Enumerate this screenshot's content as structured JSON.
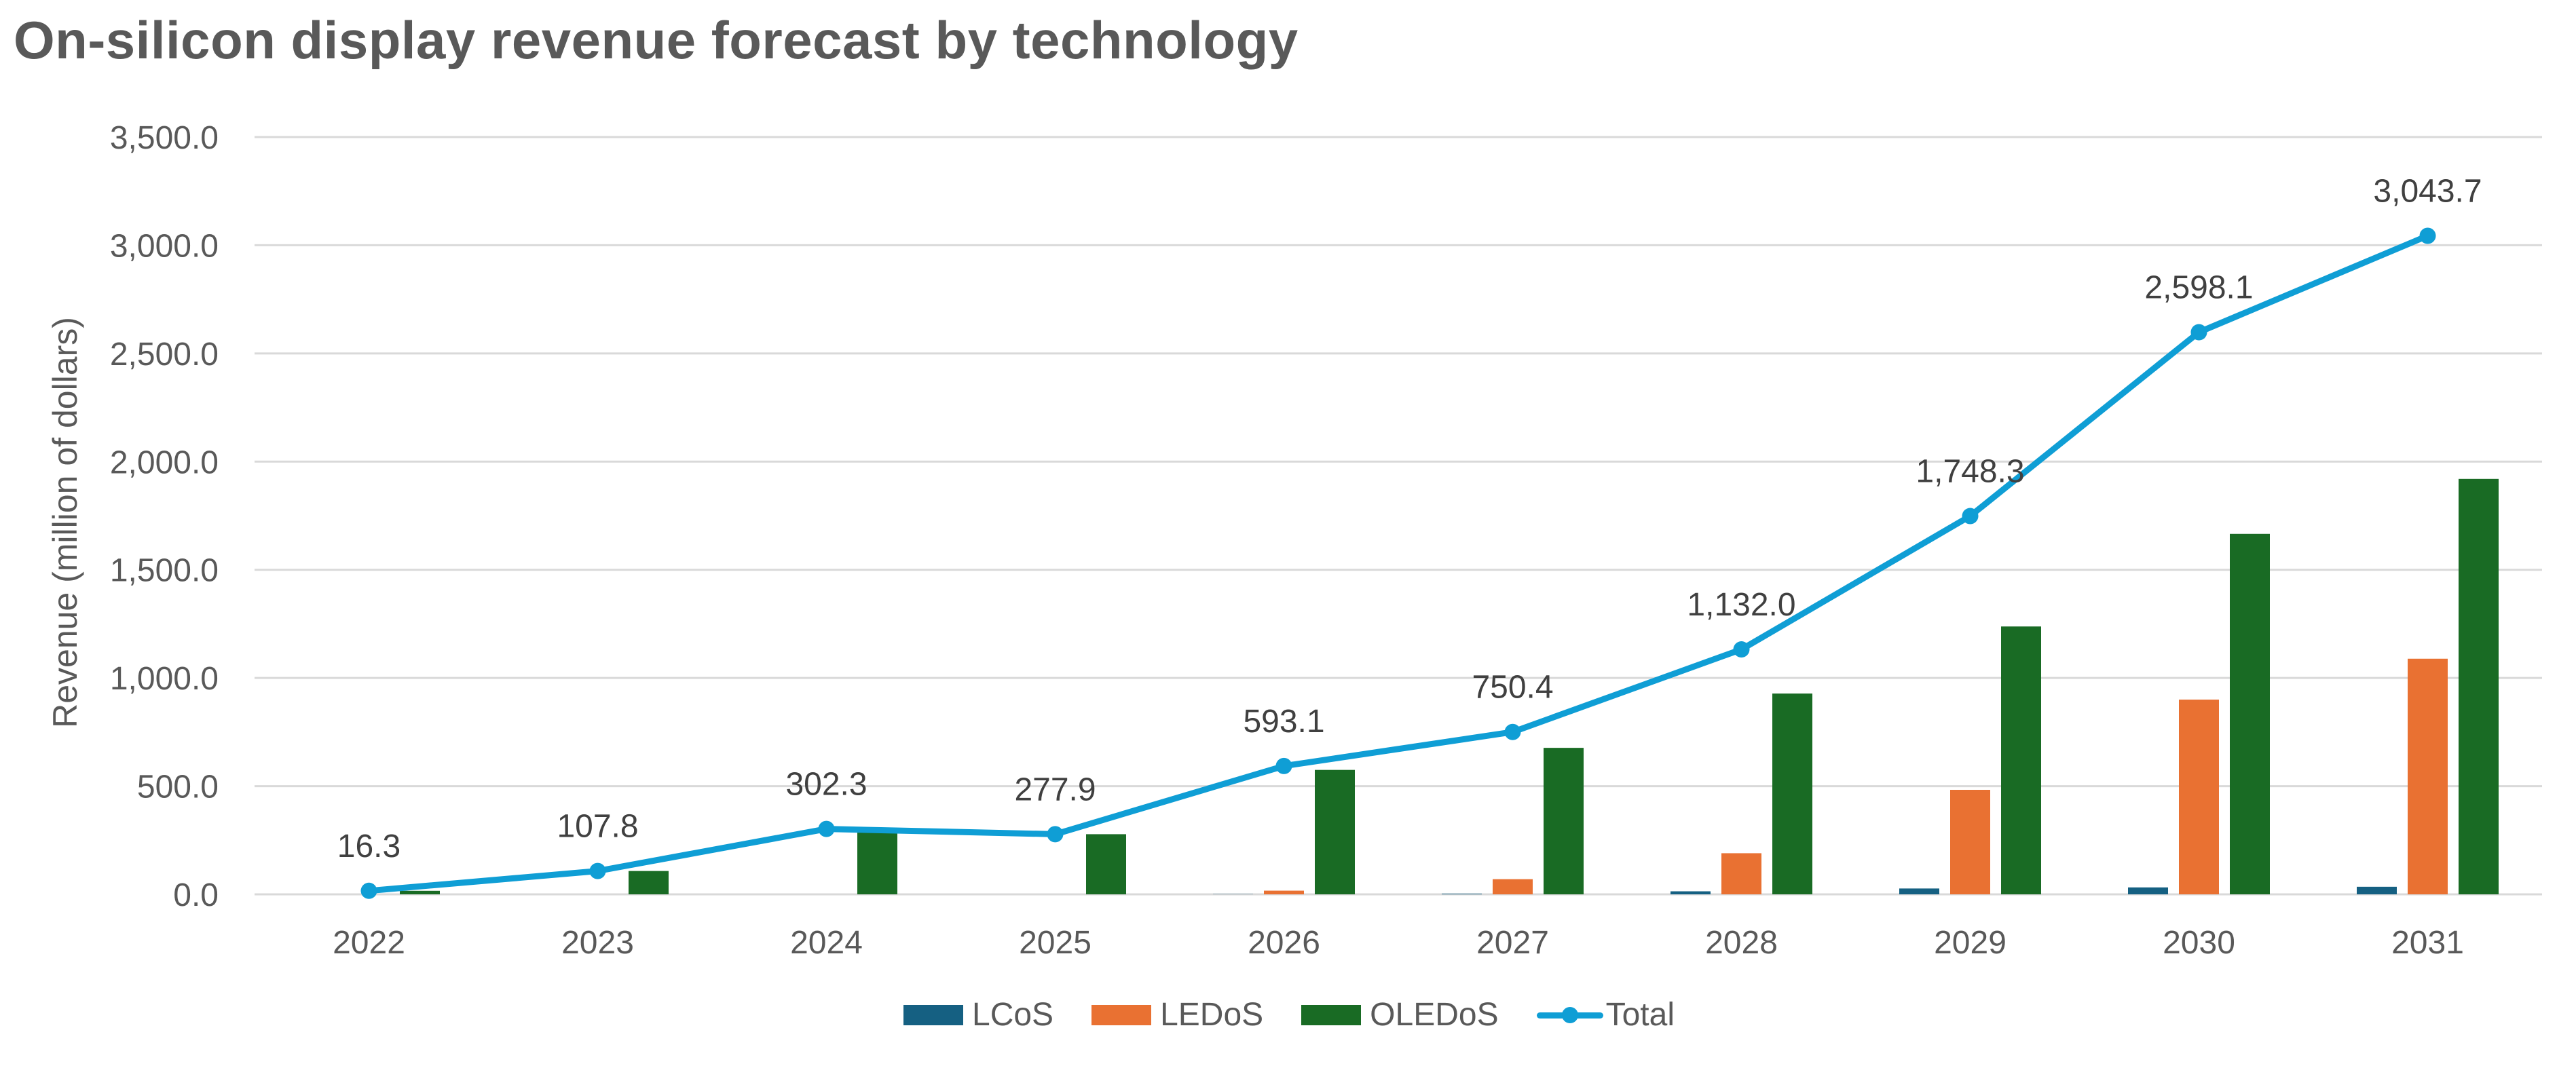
{
  "chart_data": {
    "type": "bar",
    "title": "On-silicon display revenue forecast by technology",
    "xlabel": "",
    "ylabel": "Revenue (million of dollars)",
    "ylim": [
      0,
      3500
    ],
    "yticks": [
      0,
      500,
      1000,
      1500,
      2000,
      2500,
      3000,
      3500
    ],
    "ytick_labels": [
      "0.0",
      "500.0",
      "1,000.0",
      "1,500.0",
      "2,000.0",
      "2,500.0",
      "3,000.0",
      "3,500.0"
    ],
    "grid": true,
    "legend_position": "bottom",
    "categories": [
      "2022",
      "2023",
      "2024",
      "2025",
      "2026",
      "2027",
      "2028",
      "2029",
      "2030",
      "2031"
    ],
    "series": [
      {
        "name": "LCoS",
        "type": "bar",
        "color": "#156082",
        "values": [
          0,
          0,
          0,
          0,
          1,
          3,
          14,
          27,
          32,
          35
        ]
      },
      {
        "name": "LEDoS",
        "type": "bar",
        "color": "#E97132",
        "values": [
          0,
          0,
          0,
          0,
          17,
          70,
          190,
          483,
          900,
          1089
        ]
      },
      {
        "name": "OLEDoS",
        "type": "bar",
        "color": "#196B24",
        "values": [
          16.3,
          107.8,
          302.3,
          277.9,
          575,
          677,
          928,
          1238,
          1666,
          1920
        ]
      },
      {
        "name": "Total",
        "type": "line",
        "color": "#0F9ED5",
        "values": [
          16.3,
          107.8,
          302.3,
          277.9,
          593.1,
          750.4,
          1132.0,
          1748.3,
          2598.1,
          3043.7
        ],
        "data_labels": [
          "16.3",
          "107.8",
          "302.3",
          "277.9",
          "593.1",
          "750.4",
          "1,132.0",
          "1,748.3",
          "2,598.1",
          "3,043.7"
        ]
      }
    ]
  }
}
